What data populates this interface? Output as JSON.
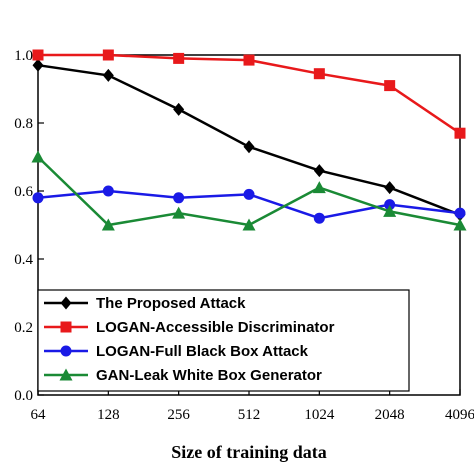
{
  "chart_data": {
    "type": "line",
    "categories": [
      "64",
      "128",
      "256",
      "512",
      "1024",
      "2048",
      "4096"
    ],
    "xlabel": "Size of training data",
    "ylabel": "",
    "ylim": [
      0.0,
      1.0
    ],
    "yticks": [
      "0.0",
      "0.2",
      "0.4",
      "0.6",
      "0.8",
      "1.0"
    ],
    "grid": false,
    "legend_position": "bottom-left",
    "series": [
      {
        "name": "The Proposed Attack",
        "color": "#000000",
        "marker": "diamond",
        "values": [
          0.97,
          0.94,
          0.84,
          0.73,
          0.66,
          0.61,
          0.53
        ]
      },
      {
        "name": "LOGAN-Accessible Discriminator",
        "color": "#e8191b",
        "marker": "square",
        "values": [
          1.0,
          1.0,
          0.99,
          0.985,
          0.945,
          0.91,
          0.77
        ]
      },
      {
        "name": "LOGAN-Full Black Box Attack",
        "color": "#1a1ae6",
        "marker": "circle",
        "values": [
          0.58,
          0.6,
          0.58,
          0.59,
          0.52,
          0.56,
          0.535
        ]
      },
      {
        "name": "GAN-Leak White Box Generator",
        "color": "#1a8a35",
        "marker": "triangle",
        "values": [
          0.7,
          0.5,
          0.535,
          0.5,
          0.61,
          0.54,
          0.5
        ]
      }
    ]
  }
}
